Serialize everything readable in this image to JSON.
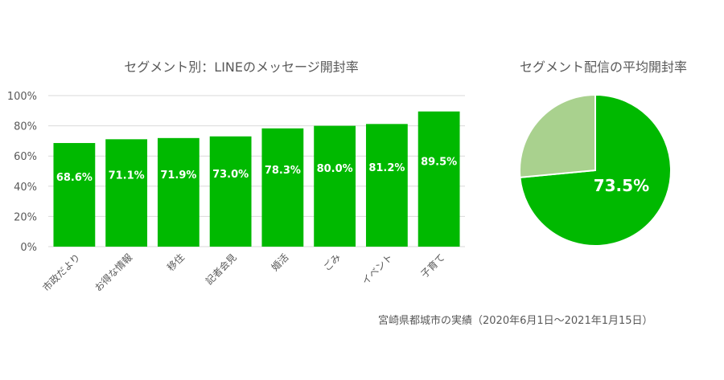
{
  "chart_data": [
    {
      "type": "bar",
      "title": "セグメント別：LINEのメッセージ開封率",
      "categories": [
        "市政だより",
        "お得な情報",
        "移住",
        "記者会見",
        "婚活",
        "ごみ",
        "イベント",
        "子育て"
      ],
      "values": [
        68.6,
        71.1,
        71.9,
        73.0,
        78.3,
        80.0,
        81.2,
        89.5
      ],
      "data_labels": [
        "68.6%",
        "71.1%",
        "71.9%",
        "73.0%",
        "78.3%",
        "80.0%",
        "81.2%",
        "89.5%"
      ],
      "y_ticks": [
        "0%",
        "20%",
        "40%",
        "60%",
        "80%",
        "100%"
      ],
      "ylim": [
        0,
        100
      ],
      "grid": true,
      "xlabel": "",
      "ylabel": "",
      "bar_color": "#00b900"
    },
    {
      "type": "pie",
      "title": "セグメント配信の平均開封率",
      "slices": [
        {
          "value": 73.5,
          "label": "73.5%",
          "color": "#00b900"
        },
        {
          "value": 26.5,
          "label": "",
          "color": "#a9d18e"
        }
      ]
    }
  ],
  "footnote": "宮崎県都城市の実績（2020年6月1日～2021年1月15日）"
}
